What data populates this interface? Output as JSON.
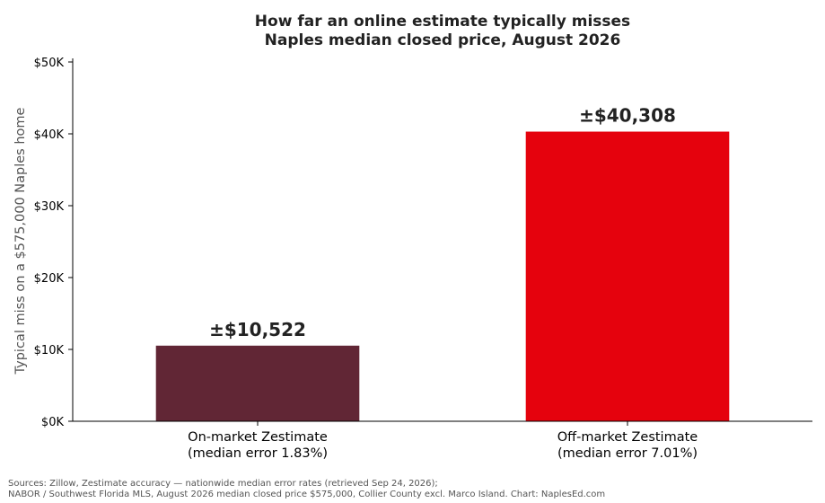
{
  "chart_data": {
    "type": "bar",
    "title": [
      "How far an online estimate typically misses",
      "Naples median closed price, August 2026"
    ],
    "ylabel": "Typical miss on a $575,000 Naples home",
    "xlabel": "",
    "ylim": [
      0,
      50000
    ],
    "yticks": [
      0,
      10000,
      20000,
      30000,
      40000,
      50000
    ],
    "ytick_labels": [
      "$0K",
      "$10K",
      "$20K",
      "$30K",
      "$40K",
      "$50K"
    ],
    "grid": false,
    "categories": [
      [
        "On-market Zestimate",
        "(median error 1.83%)"
      ],
      [
        "Off-market Zestimate",
        "(median error 7.01%)"
      ]
    ],
    "values": [
      10522,
      40308
    ],
    "data_labels": [
      "±$10,522",
      "±$40,308"
    ],
    "colors": [
      "#612635",
      "#e5020d"
    ]
  },
  "source_lines": [
    "Sources: Zillow, Zestimate accuracy — nationwide median error rates (retrieved Sep 24, 2026);",
    "NABOR / Southwest Florida MLS, August 2026 median closed price $575,000, Collier County excl. Marco Island. Chart: NaplesEd.com"
  ]
}
